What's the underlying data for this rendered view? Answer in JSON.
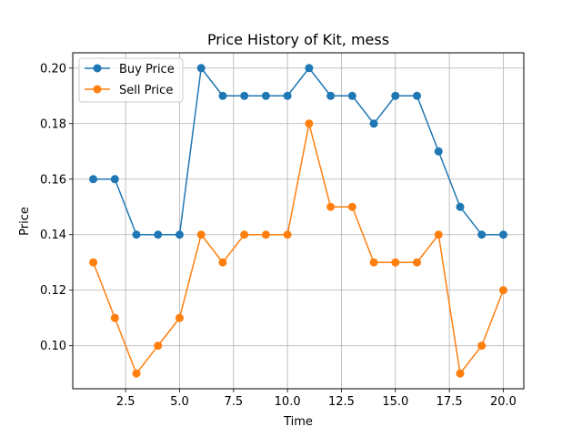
{
  "chart_data": {
    "type": "line",
    "title": "Price History of Kit, mess",
    "xlabel": "Time",
    "ylabel": "Price",
    "xlim": [
      0.05,
      20.95
    ],
    "ylim": [
      0.0845,
      0.2055
    ],
    "xticks": [
      2.5,
      5.0,
      7.5,
      10.0,
      12.5,
      15.0,
      17.5,
      20.0
    ],
    "xtick_labels": [
      "2.5",
      "5.0",
      "7.5",
      "10.0",
      "12.5",
      "15.0",
      "17.5",
      "20.0"
    ],
    "yticks": [
      0.1,
      0.12,
      0.14,
      0.16,
      0.18,
      0.2
    ],
    "ytick_labels": [
      "0.10",
      "0.12",
      "0.14",
      "0.16",
      "0.18",
      "0.20"
    ],
    "grid": true,
    "legend_position": "top-left",
    "x": [
      1,
      2,
      3,
      4,
      5,
      6,
      7,
      8,
      9,
      10,
      11,
      12,
      13,
      14,
      15,
      16,
      17,
      18,
      19,
      20
    ],
    "series": [
      {
        "name": "Buy Price",
        "color": "#1f77b4",
        "values": [
          0.16,
          0.16,
          0.14,
          0.14,
          0.14,
          0.2,
          0.19,
          0.19,
          0.19,
          0.19,
          0.2,
          0.19,
          0.19,
          0.18,
          0.19,
          0.19,
          0.17,
          0.15,
          0.14,
          0.14
        ]
      },
      {
        "name": "Sell Price",
        "color": "#ff7f0e",
        "values": [
          0.13,
          0.11,
          0.09,
          0.1,
          0.11,
          0.14,
          0.13,
          0.14,
          0.14,
          0.14,
          0.18,
          0.15,
          0.15,
          0.13,
          0.13,
          0.13,
          0.14,
          0.09,
          0.1,
          0.12
        ]
      }
    ]
  }
}
